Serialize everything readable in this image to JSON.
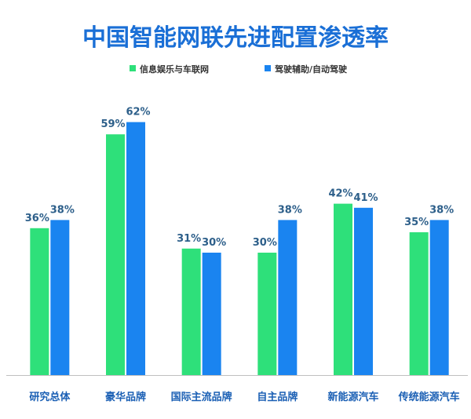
{
  "chart_data": {
    "type": "bar",
    "title": "中国智能网联先进配置渗透率",
    "categories": [
      "研究总体",
      "豪华品牌",
      "国际主流品牌",
      "自主品牌",
      "新能源汽车",
      "传统能源汽车"
    ],
    "series": [
      {
        "name": "信息娱乐与车联网",
        "color": "#2ee07a",
        "values": [
          36,
          59,
          31,
          30,
          42,
          35
        ]
      },
      {
        "name": "驾驶辅助/自动驾驶",
        "color": "#1a84f0",
        "values": [
          38,
          62,
          30,
          38,
          41,
          38
        ]
      }
    ],
    "value_suffix": "%",
    "ylim": [
      0,
      80
    ],
    "grid": false,
    "legend_position": "top-center",
    "colors": {
      "title": "#1a6fd6",
      "data_label": "#2d5f8a",
      "category_label": "#1a5fb4",
      "legend_text": "#333333",
      "baseline": "#bfbfbf"
    }
  }
}
